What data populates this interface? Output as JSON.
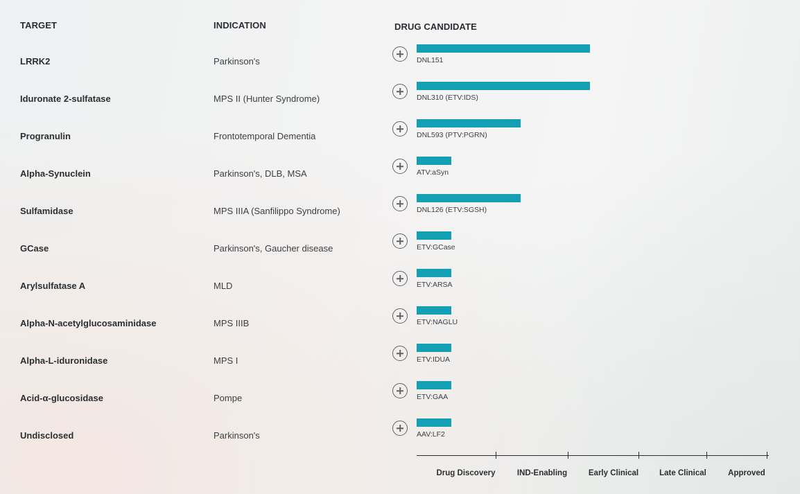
{
  "headers": {
    "target": "TARGET",
    "indication": "INDICATION",
    "drug_candidate": "DRUG CANDIDATE"
  },
  "pipeline": [
    {
      "target": "LRRK2",
      "indication": "Parkinson's",
      "candidate": "DNL151",
      "stage_progress": 2.5
    },
    {
      "target": "Iduronate 2-sulfatase",
      "indication": "MPS II (Hunter Syndrome)",
      "candidate": "DNL310 (ETV:IDS)",
      "stage_progress": 2.5
    },
    {
      "target": "Progranulin",
      "indication": "Frontotemporal Dementia",
      "candidate": "DNL593 (PTV:PGRN)",
      "stage_progress": 1.5
    },
    {
      "target": "Alpha-Synuclein",
      "indication": "Parkinson's, DLB, MSA",
      "candidate": "ATV:aSyn",
      "stage_progress": 0.5
    },
    {
      "target": "Sulfamidase",
      "indication": "MPS IIIA (Sanfilippo Syndrome)",
      "candidate": "DNL126 (ETV:SGSH)",
      "stage_progress": 1.5
    },
    {
      "target": "GCase",
      "indication": "Parkinson's, Gaucher disease",
      "candidate": "ETV:GCase",
      "stage_progress": 0.5
    },
    {
      "target": "Arylsulfatase A",
      "indication": "MLD",
      "candidate": "ETV:ARSA",
      "stage_progress": 0.5
    },
    {
      "target": "Alpha-N-acetylglucosaminidase",
      "indication": "MPS IIIB",
      "candidate": "ETV:NAGLU",
      "stage_progress": 0.5
    },
    {
      "target": "Alpha-L-iduronidase",
      "indication": "MPS I",
      "candidate": "ETV:IDUA",
      "stage_progress": 0.5
    },
    {
      "target": "Acid-α-glucosidase",
      "indication": "Pompe",
      "candidate": "ETV:GAA",
      "stage_progress": 0.5
    },
    {
      "target": "Undisclosed",
      "indication": "Parkinson's",
      "candidate": "AAV:LF2",
      "stage_progress": 0.5
    }
  ],
  "stages": [
    "Drug Discovery",
    "IND-Enabling",
    "Early Clinical",
    "Late Clinical",
    "Approved"
  ],
  "colors": {
    "bar": "#13a0b5",
    "text": "#2b2f33"
  },
  "icons": {
    "expand": "plus-circle-icon"
  }
}
